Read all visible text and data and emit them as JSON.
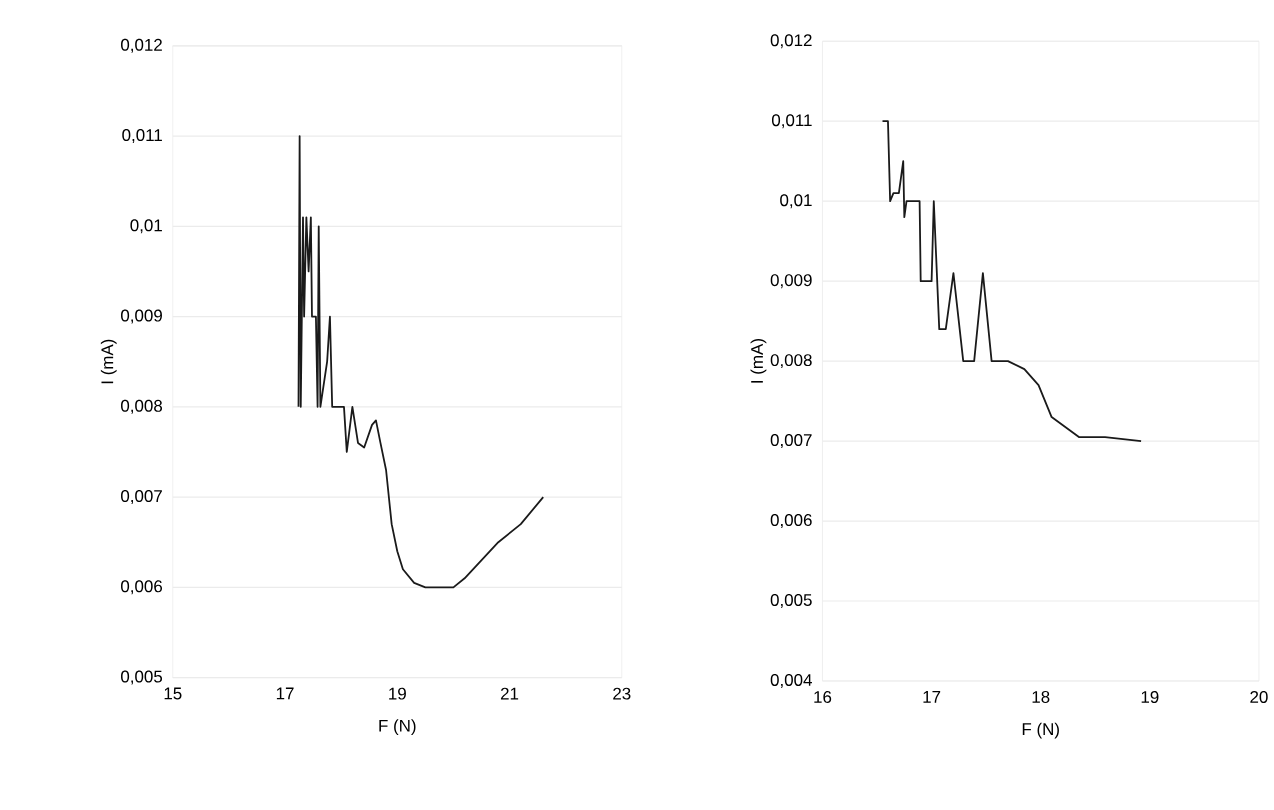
{
  "chart_data": [
    {
      "type": "line",
      "xlabel": "F (N)",
      "ylabel": "I (mA)",
      "color": "#1a1a1a",
      "grid": "y",
      "x": [
        17.24,
        17.26,
        17.28,
        17.32,
        17.34,
        17.38,
        17.42,
        17.46,
        17.48,
        17.55,
        17.58,
        17.6,
        17.63,
        17.75,
        17.8,
        17.84,
        18.0,
        18.05,
        18.1,
        18.2,
        18.3,
        18.41,
        18.55,
        18.62,
        18.7,
        18.8,
        18.9,
        19.0,
        19.1,
        19.3,
        19.5,
        19.8,
        20.0,
        20.2,
        20.5,
        20.8,
        21.2,
        21.6
      ],
      "values": [
        0.008,
        0.011,
        0.008,
        0.0101,
        0.009,
        0.0101,
        0.0095,
        0.0101,
        0.009,
        0.009,
        0.008,
        0.01,
        0.008,
        0.0085,
        0.009,
        0.008,
        0.008,
        0.008,
        0.0075,
        0.008,
        0.0076,
        0.00755,
        0.0078,
        0.00785,
        0.0076,
        0.0073,
        0.0067,
        0.0064,
        0.0062,
        0.00605,
        0.006,
        0.006,
        0.006,
        0.0061,
        0.0063,
        0.0065,
        0.0067,
        0.007
      ],
      "xlim": [
        15,
        23
      ],
      "xticks": [
        15,
        17,
        19,
        21,
        23
      ],
      "ylim": [
        0.005,
        0.012
      ],
      "yticks": [
        {
          "value": 0.005,
          "label": "0,005"
        },
        {
          "value": 0.006,
          "label": "0,006"
        },
        {
          "value": 0.007,
          "label": "0,007"
        },
        {
          "value": 0.008,
          "label": "0,008"
        },
        {
          "value": 0.009,
          "label": "0,009"
        },
        {
          "value": 0.01,
          "label": "0,01"
        },
        {
          "value": 0.011,
          "label": "0,011"
        },
        {
          "value": 0.012,
          "label": "0,012"
        }
      ]
    },
    {
      "type": "line",
      "xlabel": "F (N)",
      "ylabel": "I (mA)",
      "color": "#1a1a1a",
      "grid": "y",
      "x": [
        16.55,
        16.6,
        16.62,
        16.65,
        16.7,
        16.74,
        16.75,
        16.77,
        16.89,
        16.9,
        17.0,
        17.02,
        17.07,
        17.13,
        17.2,
        17.29,
        17.39,
        17.47,
        17.55,
        17.7,
        17.85,
        17.98,
        18.1,
        18.35,
        18.59,
        18.92
      ],
      "values": [
        0.011,
        0.011,
        0.01,
        0.0101,
        0.0101,
        0.0105,
        0.0098,
        0.01,
        0.01,
        0.009,
        0.009,
        0.01,
        0.0084,
        0.0084,
        0.0091,
        0.008,
        0.008,
        0.0091,
        0.008,
        0.008,
        0.0079,
        0.0077,
        0.0073,
        0.00705,
        0.00705,
        0.007
      ],
      "xlim": [
        16,
        20
      ],
      "xticks": [
        16,
        17,
        18,
        19,
        20
      ],
      "ylim": [
        0.004,
        0.012
      ],
      "yticks": [
        {
          "value": 0.004,
          "label": "0,004"
        },
        {
          "value": 0.005,
          "label": "0,005"
        },
        {
          "value": 0.006,
          "label": "0,006"
        },
        {
          "value": 0.007,
          "label": "0,007"
        },
        {
          "value": 0.008,
          "label": "0,008"
        },
        {
          "value": 0.009,
          "label": "0,009"
        },
        {
          "value": 0.01,
          "label": "0,01"
        },
        {
          "value": 0.011,
          "label": "0,011"
        },
        {
          "value": 0.012,
          "label": "0,012"
        }
      ]
    }
  ]
}
